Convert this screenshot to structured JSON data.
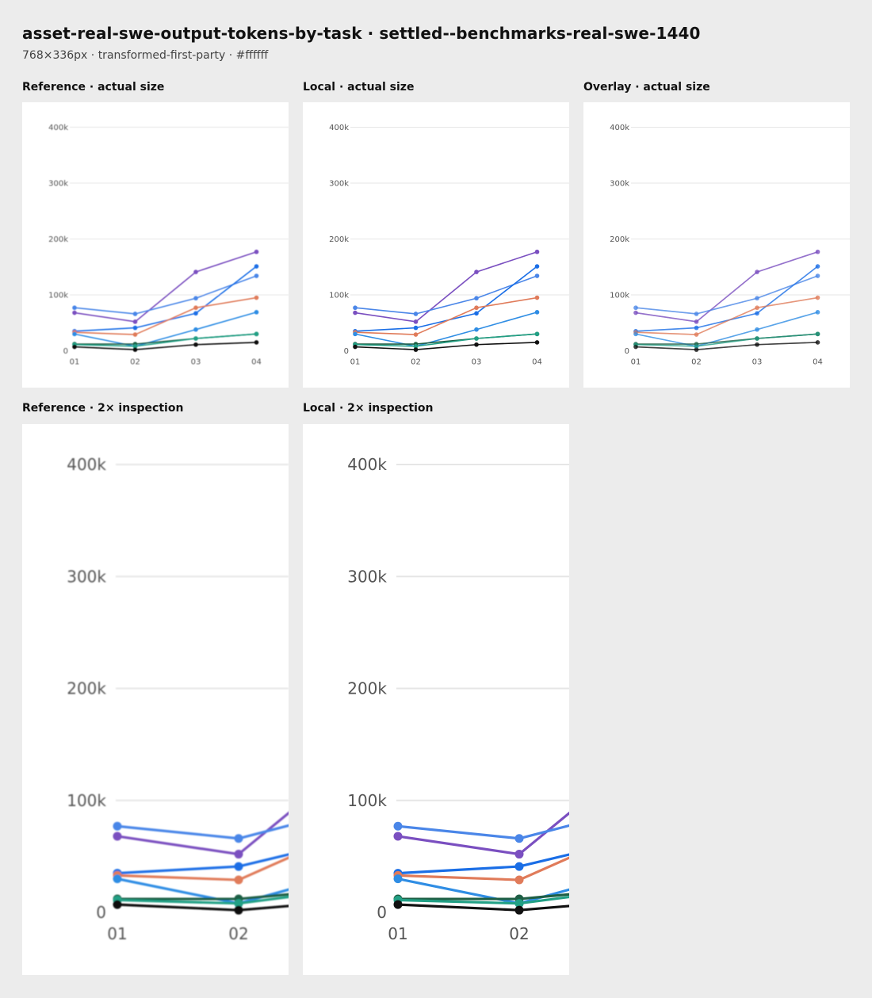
{
  "header": {
    "title": "asset-real-swe-output-tokens-by-task · settled--benchmarks-real-swe-1440",
    "subtitle": "768×336px · transformed-first-party · #ffffff"
  },
  "panels": {
    "ref_actual": "Reference · actual size",
    "local_actual": "Local · actual size",
    "overlay_actual": "Overlay · actual size",
    "ref_2x": "Reference · 2× inspection",
    "local_2x": "Local · 2× inspection"
  },
  "chart_data": {
    "type": "line",
    "categories": [
      "01",
      "02",
      "03",
      "04"
    ],
    "ylim": [
      0,
      400000
    ],
    "yticks": [
      0,
      100000,
      200000,
      300000,
      400000
    ],
    "ytick_labels": [
      "0",
      "100k",
      "200k",
      "300k",
      "400k"
    ],
    "grid": true,
    "series": [
      {
        "color": "#7a4fc0",
        "values": [
          68000,
          52000,
          141000,
          177000
        ]
      },
      {
        "color": "#4a86e8",
        "values": [
          77000,
          66000,
          94000,
          134000
        ]
      },
      {
        "color": "#1a6ee6",
        "values": [
          35000,
          41000,
          67000,
          151000
        ]
      },
      {
        "color": "#e07b5a",
        "values": [
          33000,
          29000,
          77000,
          95000
        ]
      },
      {
        "color": "#2f8de4",
        "values": [
          30000,
          8000,
          38000,
          69000
        ]
      },
      {
        "color": "#1f5f45",
        "values": [
          12000,
          12000,
          22000,
          30000
        ]
      },
      {
        "color": "#22a085",
        "values": [
          11000,
          8000,
          22000,
          30000
        ]
      },
      {
        "color": "#111111",
        "values": [
          7000,
          2000,
          11000,
          15000
        ]
      }
    ]
  }
}
